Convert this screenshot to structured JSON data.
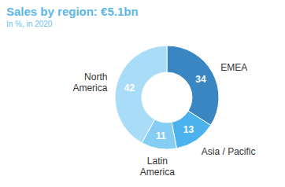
{
  "chart_data": {
    "type": "pie",
    "title": "Sales by region: €5.1bn",
    "subtitle": "In %, in 2020",
    "categories": [
      "EMEA",
      "Asia / Pacific",
      "Latin America",
      "North America"
    ],
    "values": [
      34,
      13,
      11,
      42
    ],
    "colors": [
      "#3a86c2",
      "#4cb2ee",
      "#86cdf3",
      "#a9dcf7"
    ],
    "data_labels": true
  }
}
